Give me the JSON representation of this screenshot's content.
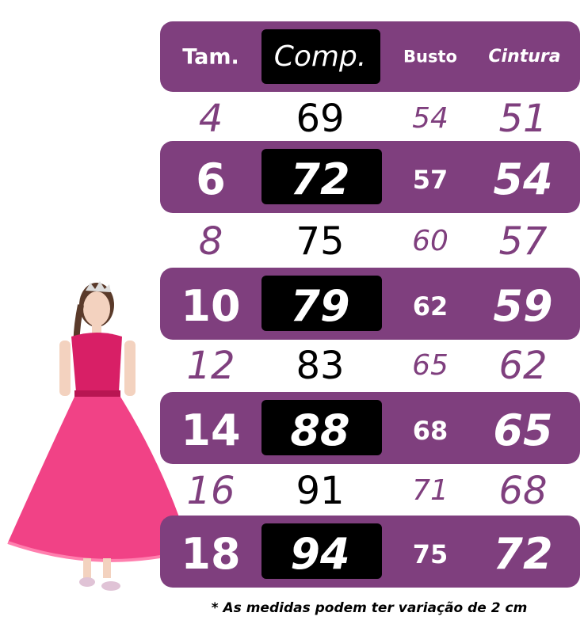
{
  "table": {
    "headers": [
      "Tam.",
      "Comp.",
      "Busto",
      "Cintura"
    ],
    "rows": [
      [
        "4",
        "69",
        "54",
        "51"
      ],
      [
        "6",
        "72",
        "57",
        "54"
      ],
      [
        "8",
        "75",
        "60",
        "57"
      ],
      [
        "10",
        "79",
        "62",
        "59"
      ],
      [
        "12",
        "83",
        "65",
        "62"
      ],
      [
        "14",
        "88",
        "68",
        "65"
      ],
      [
        "16",
        "91",
        "71",
        "68"
      ],
      [
        "18",
        "94",
        "75",
        "72"
      ]
    ]
  },
  "footnote": "* As medidas podem ter variação de 2 cm",
  "colors": {
    "accent": "#7f3f7e",
    "highlight": "#000000",
    "dress": "#e8246e"
  },
  "image": {
    "icon": "girl-in-pink-dress-photo"
  }
}
